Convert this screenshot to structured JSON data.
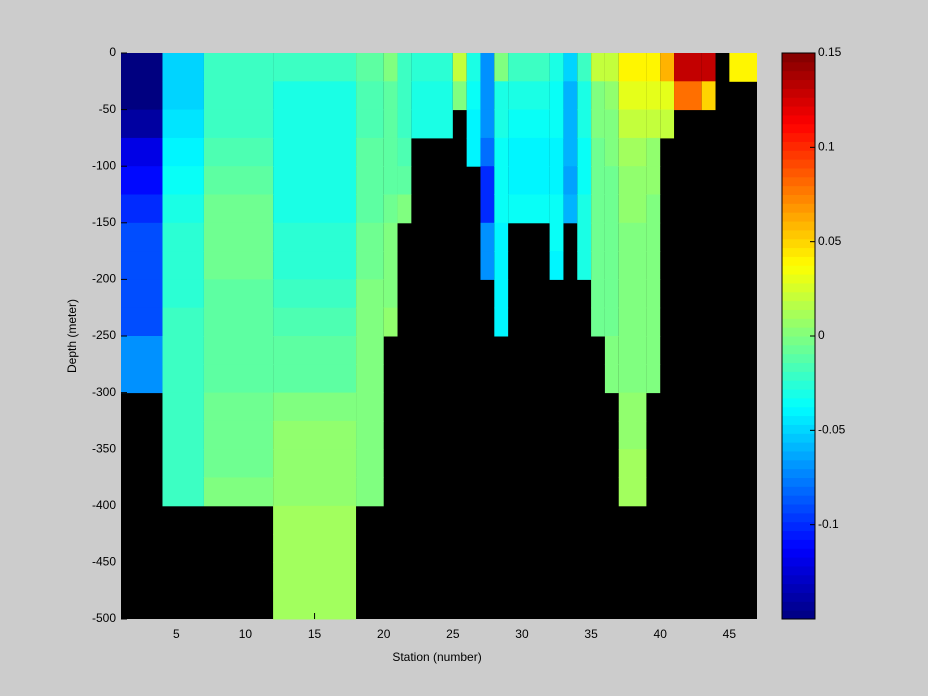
{
  "chart_data": {
    "type": "heatmap",
    "xlabel": "Station (number)",
    "ylabel": "Depth (meter)",
    "x": [
      1,
      4,
      7,
      12,
      18,
      20,
      21,
      22,
      25,
      26,
      27,
      28,
      29,
      32,
      33,
      34,
      35,
      36,
      37,
      39,
      40,
      41,
      43,
      44,
      45,
      47
    ],
    "y": [
      0,
      -25,
      -50,
      -75,
      -100,
      -125,
      -150,
      -175,
      -200,
      -225,
      -250,
      -275,
      -300,
      -325,
      -350,
      -375,
      -400,
      -425,
      -450,
      -475,
      -500
    ],
    "z": [
      [
        -0.15,
        -0.15,
        -0.14,
        -0.12,
        -0.11,
        -0.1,
        -0.09,
        -0.09,
        -0.09,
        -0.09,
        -0.07,
        -0.07,
        null,
        null,
        null,
        null,
        null,
        null,
        null,
        null
      ],
      [
        -0.05,
        -0.05,
        -0.045,
        -0.04,
        -0.035,
        -0.03,
        -0.025,
        -0.025,
        -0.025,
        -0.02,
        -0.02,
        -0.02,
        -0.02,
        -0.02,
        -0.02,
        -0.02,
        null,
        null,
        null,
        null
      ],
      [
        -0.02,
        -0.02,
        -0.02,
        -0.015,
        -0.01,
        -0.005,
        -0.005,
        -0.005,
        -0.01,
        -0.01,
        -0.01,
        -0.01,
        -0.005,
        -0.005,
        -0.005,
        0,
        null,
        null,
        null,
        null
      ],
      [
        -0.02,
        -0.03,
        -0.03,
        -0.03,
        -0.03,
        -0.03,
        -0.025,
        -0.025,
        -0.02,
        -0.015,
        -0.01,
        -0.01,
        0,
        0.005,
        0.005,
        0.005,
        0.01,
        0.01,
        0.01,
        0.01
      ],
      [
        -0.01,
        -0.015,
        -0.015,
        -0.01,
        -0.01,
        -0.01,
        -0.005,
        -0.005,
        0,
        0,
        0,
        0,
        0,
        0,
        0,
        0,
        null,
        null,
        null,
        null
      ],
      [
        0,
        -0.01,
        -0.01,
        -0.01,
        -0.01,
        -0.005,
        0,
        0,
        0,
        0.005,
        null,
        null,
        null,
        null,
        null,
        null,
        null,
        null,
        null,
        null
      ],
      [
        -0.02,
        -0.02,
        -0.02,
        -0.015,
        -0.01,
        0,
        null,
        null,
        null,
        null,
        null,
        null,
        null,
        null,
        null,
        null,
        null,
        null,
        null,
        null
      ],
      [
        -0.025,
        -0.03,
        -0.03,
        null,
        null,
        null,
        null,
        null,
        null,
        null,
        null,
        null,
        null,
        null,
        null,
        null,
        null,
        null,
        null,
        null
      ],
      [
        0.02,
        0,
        null,
        null,
        null,
        null,
        null,
        null,
        null,
        null,
        null,
        null,
        null,
        null,
        null,
        null,
        null,
        null,
        null,
        null
      ],
      [
        -0.03,
        -0.035,
        -0.04,
        -0.04,
        null,
        null,
        null,
        null,
        null,
        null,
        null,
        null,
        null,
        null,
        null,
        null,
        null,
        null,
        null,
        null
      ],
      [
        -0.07,
        -0.07,
        -0.07,
        -0.08,
        -0.1,
        -0.1,
        -0.07,
        -0.07,
        null,
        null,
        null,
        null,
        null,
        null,
        null,
        null,
        null,
        null,
        null,
        null
      ],
      [
        0,
        -0.03,
        -0.03,
        -0.035,
        -0.035,
        -0.035,
        -0.04,
        -0.04,
        -0.04,
        -0.04,
        null,
        null,
        null,
        null,
        null,
        null,
        null,
        null,
        null,
        null
      ],
      [
        -0.02,
        -0.03,
        -0.035,
        -0.04,
        -0.04,
        -0.035,
        null,
        null,
        null,
        null,
        null,
        null,
        null,
        null,
        null,
        null,
        null,
        null,
        null,
        null
      ],
      [
        -0.03,
        -0.035,
        -0.035,
        -0.04,
        -0.04,
        -0.035,
        -0.035,
        -0.04,
        null,
        null,
        null,
        null,
        null,
        null,
        null,
        null,
        null,
        null,
        null,
        null
      ],
      [
        -0.05,
        -0.06,
        -0.06,
        -0.06,
        -0.065,
        -0.06,
        null,
        null,
        null,
        null,
        null,
        null,
        null,
        null,
        null,
        null,
        null,
        null,
        null,
        null
      ],
      [
        -0.02,
        -0.03,
        -0.03,
        -0.035,
        -0.035,
        -0.03,
        -0.03,
        -0.03,
        null,
        null,
        null,
        null,
        null,
        null,
        null,
        null,
        null,
        null,
        null,
        null
      ],
      [
        0.02,
        0,
        0,
        -0.005,
        -0.005,
        -0.005,
        -0.005,
        -0.005,
        -0.005,
        -0.005,
        null,
        null,
        null,
        null,
        null,
        null,
        null,
        null,
        null,
        null
      ],
      [
        0.02,
        0.005,
        0,
        0,
        -0.005,
        -0.005,
        -0.005,
        -0.005,
        -0.005,
        -0.005,
        0,
        0,
        null,
        null,
        null,
        null,
        null,
        null,
        null,
        null
      ],
      [
        0.04,
        0.03,
        0.02,
        0.01,
        0.005,
        0.005,
        0,
        0,
        0,
        0,
        0,
        0,
        0.005,
        0.005,
        0.01,
        0.01,
        null,
        null,
        null,
        null
      ],
      [
        0.04,
        0.03,
        0.02,
        0.005,
        0.005,
        0,
        0,
        0,
        0,
        0,
        0,
        0,
        null,
        null,
        null,
        null,
        null,
        null,
        null,
        null
      ],
      [
        0.06,
        0.03,
        0.02,
        null,
        null,
        null,
        null,
        null,
        null,
        null,
        null,
        null,
        null,
        null,
        null,
        null,
        null,
        null,
        null,
        null
      ],
      [
        0.13,
        0.08,
        null,
        null,
        null,
        null,
        null,
        null,
        null,
        null,
        null,
        null,
        null,
        null,
        null,
        null,
        null,
        null,
        null,
        null
      ],
      [
        0.13,
        0.05,
        null,
        null,
        null,
        null,
        null,
        null,
        null,
        null,
        null,
        null,
        null,
        null,
        null,
        null,
        null,
        null,
        null,
        null
      ],
      [
        null,
        null,
        null,
        null,
        null,
        null,
        null,
        null,
        null,
        null,
        null,
        null,
        null,
        null,
        null,
        null,
        null,
        null,
        null,
        null
      ],
      [
        0.04,
        null,
        null,
        null,
        null,
        null,
        null,
        null,
        null,
        null,
        null,
        null,
        null,
        null,
        null,
        null,
        null,
        null,
        null,
        null
      ]
    ],
    "colormap": "jet",
    "nan_color": "#000000",
    "xlim": [
      1,
      47
    ],
    "xticks": [
      5,
      10,
      15,
      20,
      25,
      30,
      35,
      40,
      45
    ],
    "ylim": [
      -500,
      0
    ],
    "yticks": [
      0,
      -50,
      -100,
      -150,
      -200,
      -250,
      -300,
      -350,
      -400,
      -450,
      -500
    ],
    "clim": [
      -0.15,
      0.15
    ],
    "cticks": [
      0.15,
      0.1,
      0.05,
      0,
      -0.05,
      -0.1
    ]
  }
}
